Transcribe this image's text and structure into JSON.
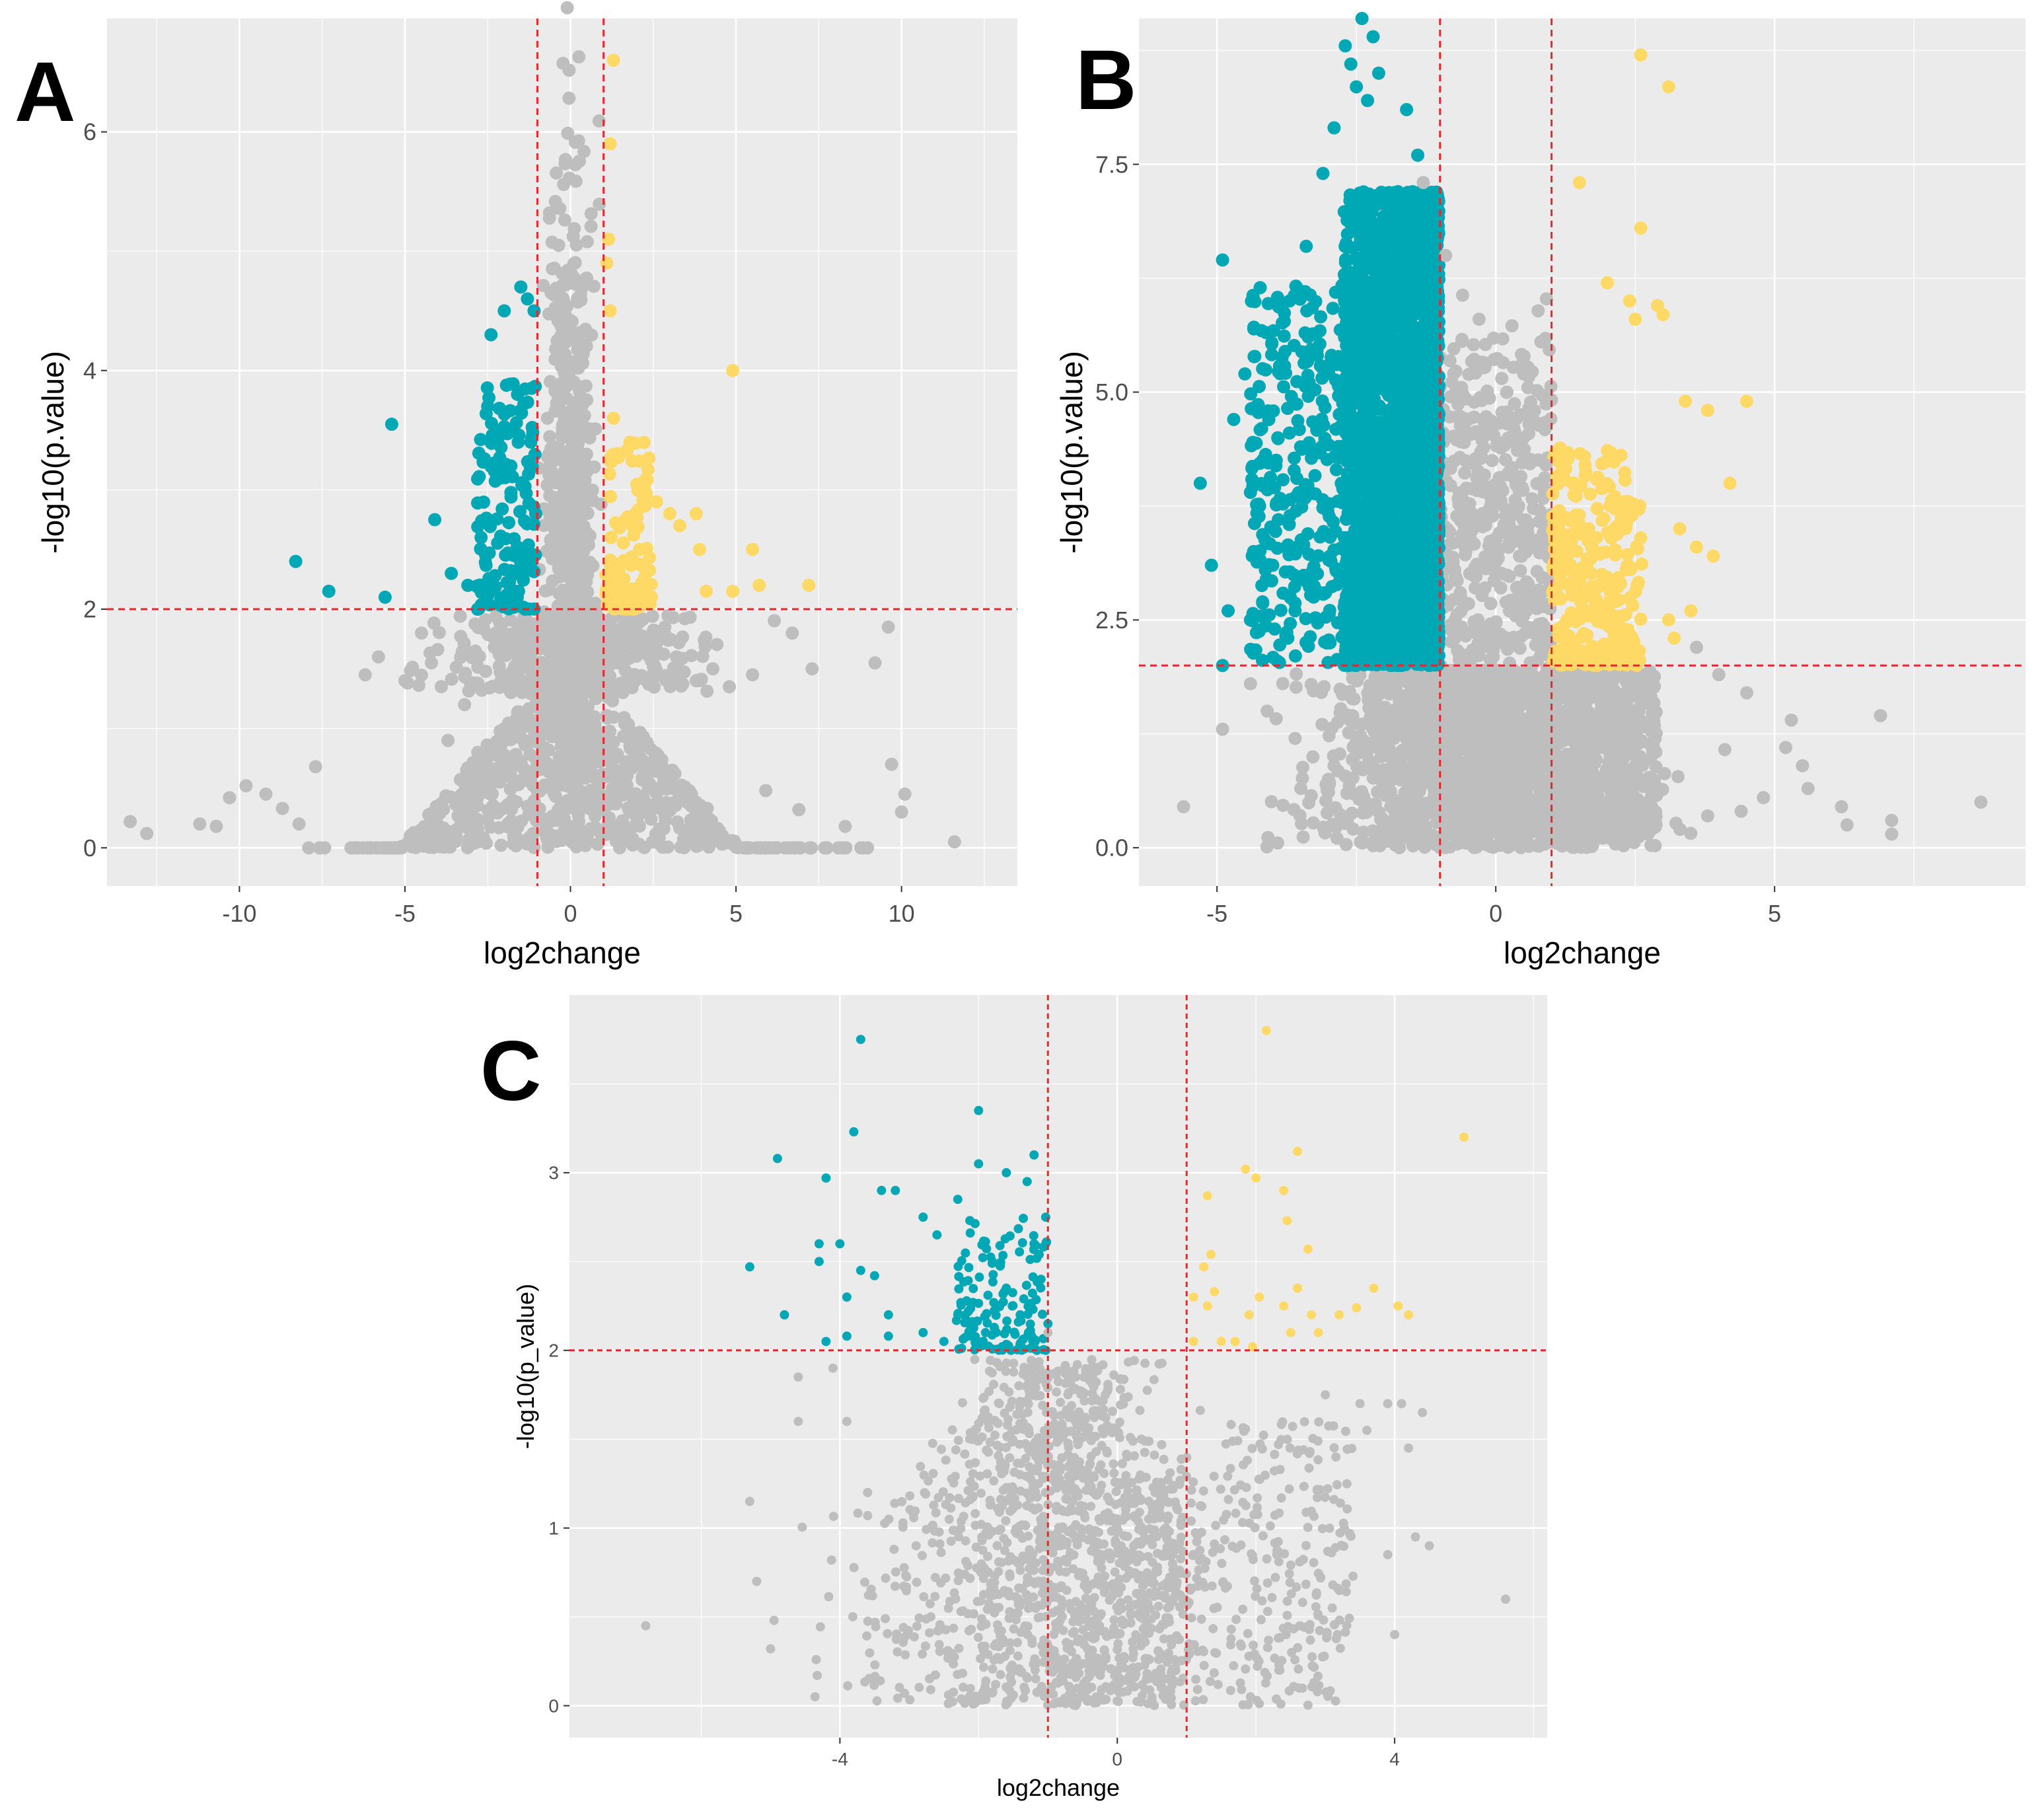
{
  "figure": {
    "colors": {
      "panel_bg": "#EBEBEB",
      "grid": "#FFFFFF",
      "ns": "#BEBEBE",
      "down": "#00A8B5",
      "up": "#FFD966",
      "threshold": "#E8262B",
      "tick_text": "#4D4D4D"
    }
  },
  "chart_data": [
    {
      "id": "A",
      "panel_label": "A",
      "type": "scatter",
      "xlabel": "log2change",
      "ylabel": "-log10(p.value)",
      "xlim": [
        -14,
        13.5
      ],
      "ylim": [
        -0.32,
        6.95
      ],
      "xticks": [
        -10,
        -5,
        0,
        5,
        10
      ],
      "xtick_labels": [
        "-10",
        "-5",
        "0",
        "5",
        "10"
      ],
      "yticks": [
        0,
        2,
        4,
        6
      ],
      "ytick_labels": [
        "0",
        "2",
        "4",
        "6"
      ],
      "thresholds": {
        "x": [
          -1,
          1
        ],
        "y": 2
      },
      "series": [
        {
          "name": "down",
          "color": "#00A8B5",
          "points": [
            [
              -8.3,
              2.4
            ],
            [
              -7.3,
              2.15
            ],
            [
              -5.6,
              2.1
            ],
            [
              -5.4,
              3.55
            ],
            [
              -4.1,
              2.75
            ],
            [
              -3.6,
              2.3
            ],
            [
              -3.1,
              2.2
            ],
            [
              -2.7,
              2.6
            ],
            [
              -2.5,
              3.7
            ],
            [
              -2.4,
              4.3
            ],
            [
              -2.1,
              3.1
            ],
            [
              -2.0,
              4.5
            ],
            [
              -1.8,
              3.2
            ],
            [
              -1.6,
              3.8
            ],
            [
              -1.5,
              4.7
            ],
            [
              -1.3,
              4.6
            ],
            [
              -1.2,
              3.4
            ],
            [
              -1.1,
              4.5
            ],
            [
              -1.05,
              2.8
            ]
          ]
        },
        {
          "name": "up",
          "color": "#FFD966",
          "points": [
            [
              1.3,
              6.6
            ],
            [
              1.2,
              5.9
            ],
            [
              1.15,
              5.1
            ],
            [
              1.1,
              4.9
            ],
            [
              1.2,
              4.5
            ],
            [
              1.3,
              3.6
            ],
            [
              1.5,
              3.3
            ],
            [
              1.8,
              3.4
            ],
            [
              2.3,
              3.25
            ],
            [
              2.6,
              2.9
            ],
            [
              3.0,
              2.8
            ],
            [
              3.3,
              2.7
            ],
            [
              3.8,
              2.8
            ],
            [
              3.9,
              2.5
            ],
            [
              4.1,
              2.15
            ],
            [
              4.9,
              2.15
            ],
            [
              4.9,
              4.0
            ],
            [
              5.5,
              2.5
            ],
            [
              5.7,
              2.2
            ],
            [
              7.2,
              2.2
            ]
          ]
        },
        {
          "name": "ns",
          "color": "#BEBEBE",
          "points": [
            [
              -13.3,
              0.22
            ],
            [
              -12.8,
              0.12
            ],
            [
              -11.2,
              0.2
            ],
            [
              -10.7,
              0.18
            ],
            [
              -10.3,
              0.42
            ],
            [
              -9.8,
              0.52
            ],
            [
              -9.2,
              0.45
            ],
            [
              -8.7,
              0.33
            ],
            [
              -8.2,
              0.2
            ],
            [
              -7.7,
              0.68
            ],
            [
              -6.2,
              1.45
            ],
            [
              -5.8,
              1.6
            ],
            [
              -5.0,
              1.4
            ],
            [
              -4.5,
              1.8
            ],
            [
              -4.2,
              1.55
            ],
            [
              -3.7,
              0.9
            ],
            [
              -3.2,
              1.2
            ],
            [
              -2.8,
              0.8
            ],
            [
              3.2,
              1.6
            ],
            [
              3.8,
              1.4
            ],
            [
              4.3,
              1.5
            ],
            [
              4.8,
              1.35
            ],
            [
              5.5,
              1.45
            ],
            [
              6.7,
              1.8
            ],
            [
              7.3,
              1.5
            ],
            [
              9.2,
              1.55
            ],
            [
              9.6,
              1.85
            ],
            [
              9.7,
              0.7
            ],
            [
              10.1,
              0.45
            ],
            [
              10.0,
              0.3
            ],
            [
              11.6,
              0.05
            ],
            [
              8.3,
              0.18
            ],
            [
              6.9,
              0.32
            ],
            [
              5.9,
              0.48
            ]
          ]
        }
      ]
    },
    {
      "id": "B",
      "panel_label": "B",
      "type": "scatter",
      "xlabel": "log2change",
      "ylabel": "-log10(p.value)",
      "xlim": [
        -6.4,
        9.5
      ],
      "ylim": [
        -0.42,
        9.1
      ],
      "xticks": [
        -5,
        0,
        5
      ],
      "xtick_labels": [
        "-5",
        "0",
        "5"
      ],
      "yticks": [
        0.0,
        2.5,
        5.0,
        7.5
      ],
      "ytick_labels": [
        "0.0",
        "2.5",
        "5.0",
        "7.5"
      ],
      "thresholds": {
        "x": [
          -1,
          1
        ],
        "y": 2
      },
      "series": [
        {
          "name": "down",
          "color": "#00A8B5",
          "points": [
            [
              -2.4,
              9.1
            ],
            [
              -2.2,
              8.9
            ],
            [
              -2.7,
              8.8
            ],
            [
              -2.6,
              8.6
            ],
            [
              -2.1,
              8.5
            ],
            [
              -2.5,
              8.35
            ],
            [
              -2.3,
              8.2
            ],
            [
              -1.6,
              8.1
            ],
            [
              -2.9,
              7.9
            ],
            [
              -1.4,
              7.6
            ],
            [
              -3.1,
              7.4
            ],
            [
              -4.9,
              6.45
            ],
            [
              -3.4,
              6.6
            ],
            [
              -3.7,
              6.0
            ],
            [
              -4.5,
              5.2
            ],
            [
              -4.7,
              4.7
            ],
            [
              -4.2,
              4.6
            ],
            [
              -5.3,
              4.0
            ],
            [
              -4.4,
              3.9
            ],
            [
              -5.1,
              3.1
            ],
            [
              -4.8,
              2.6
            ],
            [
              -4.4,
              2.5
            ],
            [
              -3.9,
              3.6
            ],
            [
              -3.5,
              4.4
            ],
            [
              -3.2,
              5.4
            ],
            [
              -4.0,
              3.1
            ],
            [
              -3.6,
              2.6
            ],
            [
              -4.9,
              2.0
            ]
          ]
        },
        {
          "name": "up",
          "color": "#FFD966",
          "points": [
            [
              2.6,
              8.7
            ],
            [
              3.1,
              8.35
            ],
            [
              1.5,
              7.3
            ],
            [
              2.6,
              6.8
            ],
            [
              2.0,
              6.2
            ],
            [
              2.4,
              6.0
            ],
            [
              2.5,
              5.8
            ],
            [
              2.9,
              5.95
            ],
            [
              3.0,
              5.85
            ],
            [
              4.5,
              4.9
            ],
            [
              3.8,
              4.8
            ],
            [
              3.4,
              4.9
            ],
            [
              4.2,
              4.0
            ],
            [
              3.3,
              3.5
            ],
            [
              3.9,
              3.2
            ],
            [
              3.6,
              3.3
            ],
            [
              3.5,
              2.6
            ],
            [
              3.2,
              2.3
            ],
            [
              3.1,
              2.5
            ],
            [
              1.9,
              3.0
            ],
            [
              1.7,
              2.6
            ],
            [
              2.3,
              2.4
            ],
            [
              2.6,
              3.4
            ]
          ]
        },
        {
          "name": "ns",
          "color": "#BEBEBE",
          "points": [
            [
              -5.6,
              0.45
            ],
            [
              -4.9,
              1.3
            ],
            [
              -4.4,
              1.8
            ],
            [
              -4.1,
              1.5
            ],
            [
              -3.6,
              1.2
            ],
            [
              -2.9,
              0.9
            ],
            [
              -1.3,
              7.3
            ],
            [
              -0.9,
              6.5
            ],
            [
              -0.3,
              5.8
            ],
            [
              0.2,
              5.0
            ],
            [
              0.5,
              5.2
            ],
            [
              0.5,
              4.5
            ],
            [
              0.9,
              4.2
            ],
            [
              5.3,
              1.4
            ],
            [
              5.2,
              1.1
            ],
            [
              5.5,
              0.9
            ],
            [
              5.6,
              0.65
            ],
            [
              6.2,
              0.45
            ],
            [
              6.3,
              0.25
            ],
            [
              6.9,
              1.45
            ],
            [
              7.1,
              0.3
            ],
            [
              7.1,
              0.15
            ],
            [
              8.7,
              0.5
            ],
            [
              4.8,
              0.55
            ],
            [
              4.4,
              0.4
            ],
            [
              3.8,
              0.35
            ],
            [
              4.5,
              1.7
            ],
            [
              4.0,
              1.9
            ],
            [
              3.6,
              2.2
            ]
          ]
        }
      ]
    },
    {
      "id": "C",
      "panel_label": "C",
      "type": "scatter",
      "xlabel": "log2change",
      "ylabel": "-log10(p_value)",
      "xlim": [
        -7.9,
        6.2
      ],
      "ylim": [
        -0.18,
        4.0
      ],
      "xticks": [
        -4,
        0,
        4
      ],
      "xtick_labels": [
        "-4",
        "0",
        "4"
      ],
      "yticks": [
        0,
        1,
        2,
        3
      ],
      "ytick_labels": [
        "0",
        "1",
        "2",
        "3"
      ],
      "thresholds": {
        "x": [
          -1,
          1
        ],
        "y": 2
      },
      "series": [
        {
          "name": "down",
          "color": "#00A8B5",
          "points": [
            [
              -3.7,
              3.75
            ],
            [
              -2.0,
              3.35
            ],
            [
              -3.8,
              3.23
            ],
            [
              -4.9,
              3.08
            ],
            [
              -1.2,
              3.1
            ],
            [
              -2.0,
              3.05
            ],
            [
              -4.2,
              2.97
            ],
            [
              -1.6,
              3.0
            ],
            [
              -3.4,
              2.9
            ],
            [
              -3.2,
              2.9
            ],
            [
              -2.3,
              2.85
            ],
            [
              -1.3,
              2.95
            ],
            [
              -2.8,
              2.75
            ],
            [
              -2.6,
              2.65
            ],
            [
              -4.3,
              2.6
            ],
            [
              -4.0,
              2.6
            ],
            [
              -4.3,
              2.5
            ],
            [
              -3.7,
              2.45
            ],
            [
              -3.5,
              2.42
            ],
            [
              -5.3,
              2.47
            ],
            [
              -3.9,
              2.3
            ],
            [
              -3.3,
              2.2
            ],
            [
              -4.8,
              2.2
            ],
            [
              -4.2,
              2.05
            ],
            [
              -3.9,
              2.08
            ],
            [
              -3.3,
              2.08
            ],
            [
              -2.8,
              2.1
            ],
            [
              -2.3,
              2.2
            ],
            [
              -1.8,
              2.5
            ],
            [
              -1.6,
              2.35
            ],
            [
              -1.4,
              2.2
            ],
            [
              -1.2,
              2.6
            ],
            [
              -1.1,
              2.4
            ],
            [
              -1.0,
              2.15
            ],
            [
              -1.9,
              2.1
            ],
            [
              -2.5,
              2.05
            ]
          ]
        },
        {
          "name": "up",
          "color": "#FFD966",
          "points": [
            [
              2.15,
              3.8
            ],
            [
              5.0,
              3.2
            ],
            [
              2.6,
              3.12
            ],
            [
              1.85,
              3.02
            ],
            [
              2.0,
              2.97
            ],
            [
              1.3,
              2.87
            ],
            [
              2.4,
              2.9
            ],
            [
              2.45,
              2.73
            ],
            [
              2.75,
              2.57
            ],
            [
              1.35,
              2.54
            ],
            [
              1.25,
              2.47
            ],
            [
              2.6,
              2.35
            ],
            [
              3.7,
              2.35
            ],
            [
              1.1,
              2.3
            ],
            [
              1.3,
              2.25
            ],
            [
              1.4,
              2.33
            ],
            [
              1.9,
              2.2
            ],
            [
              2.05,
              2.3
            ],
            [
              2.4,
              2.25
            ],
            [
              3.2,
              2.2
            ],
            [
              3.45,
              2.24
            ],
            [
              4.05,
              2.25
            ],
            [
              2.8,
              2.2
            ],
            [
              4.2,
              2.2
            ],
            [
              1.1,
              2.05
            ],
            [
              1.5,
              2.05
            ],
            [
              1.7,
              2.05
            ],
            [
              2.5,
              2.1
            ],
            [
              2.9,
              2.1
            ],
            [
              1.95,
              2.02
            ]
          ]
        },
        {
          "name": "ns",
          "color": "#BEBEBE",
          "points": [
            [
              -6.8,
              0.45
            ],
            [
              -5.3,
              1.15
            ],
            [
              -5.2,
              0.7
            ],
            [
              -4.95,
              0.48
            ],
            [
              -5.0,
              0.32
            ],
            [
              -4.6,
              1.6
            ],
            [
              -4.1,
              1.9
            ],
            [
              -4.6,
              1.85
            ],
            [
              -3.9,
              1.6
            ],
            [
              -3.6,
              1.2
            ],
            [
              -2.9,
              0.9
            ],
            [
              -1.0,
              2.1
            ],
            [
              -0.6,
              1.85
            ],
            [
              3.0,
              1.75
            ],
            [
              3.5,
              1.7
            ],
            [
              3.9,
              1.7
            ],
            [
              3.6,
              1.55
            ],
            [
              4.1,
              1.7
            ],
            [
              4.2,
              1.45
            ],
            [
              4.4,
              1.65
            ],
            [
              5.6,
              0.6
            ],
            [
              4.3,
              0.95
            ],
            [
              3.9,
              0.85
            ],
            [
              3.1,
              0.55
            ],
            [
              4.0,
              0.4
            ],
            [
              4.5,
              0.9
            ]
          ]
        }
      ]
    }
  ]
}
